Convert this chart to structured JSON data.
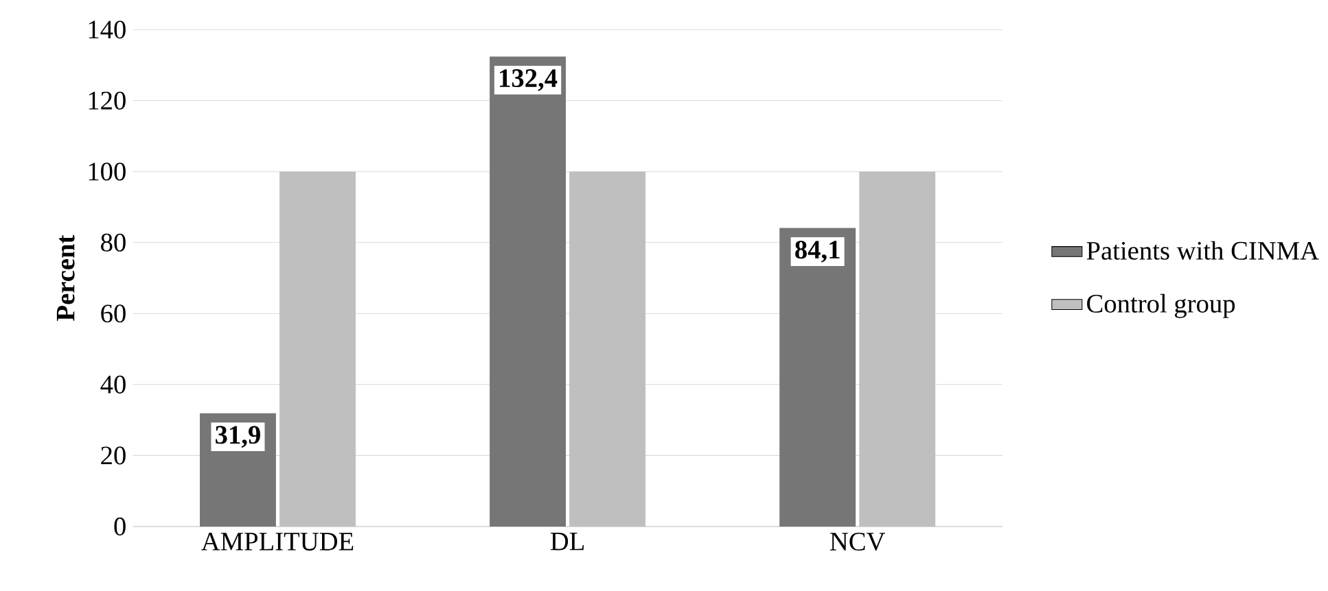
{
  "chart_data": {
    "type": "bar",
    "ylabel": "Percent",
    "categories": [
      "AMPLITUDE",
      "DL",
      "NCV"
    ],
    "series": [
      {
        "name": "Patients with CINMA",
        "color": "#767676",
        "values": [
          31.9,
          132.4,
          84.1
        ],
        "value_labels": [
          "31,9",
          "132,4",
          "84,1"
        ]
      },
      {
        "name": "Control group",
        "color": "#bfbfbf",
        "values": [
          100,
          100,
          100
        ]
      }
    ],
    "ylim": [
      0,
      140
    ],
    "yticks": [
      0,
      20,
      40,
      60,
      80,
      100,
      120,
      140
    ],
    "grid": "y",
    "legend": "right"
  }
}
